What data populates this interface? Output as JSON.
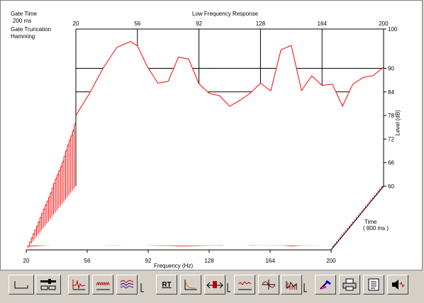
{
  "chart_data": {
    "type": "waterfall",
    "title": "Low Frequency Response",
    "info": {
      "gate_time_label": "Gate Time",
      "gate_time_value": "200 ms",
      "gate_truncation_label": "Gate Truncation",
      "window_type": "Hamming"
    },
    "x_axis": {
      "label": "Frequency (Hz)",
      "ticks": [
        "20",
        "56",
        "92",
        "128",
        "164",
        "200"
      ],
      "range": [
        20,
        200
      ]
    },
    "y_axis": {
      "label": "Level (dB)",
      "ticks": [
        "100",
        "90",
        "84",
        "78",
        "72",
        "66",
        "60"
      ],
      "range": [
        60,
        100
      ]
    },
    "time_axis": {
      "label": "Time",
      "range_label": "( 800 ms )"
    },
    "grid": true,
    "series_color": "#ff0000",
    "slice_count": 30,
    "front_slice": {
      "frequency": [
        20,
        28,
        36,
        44,
        52,
        56,
        62,
        68,
        74,
        80,
        86,
        92,
        98,
        104,
        110,
        116,
        122,
        128,
        134,
        140,
        146,
        152,
        158,
        164,
        170,
        176,
        182,
        188,
        194,
        200
      ],
      "level": [
        78,
        84,
        90,
        95,
        97,
        96,
        90,
        86,
        87,
        93,
        92,
        86,
        84,
        83,
        80,
        82,
        84,
        86,
        84,
        95,
        96,
        84,
        88,
        86,
        86,
        80,
        86,
        88,
        88,
        90
      ]
    }
  },
  "toolbar": {
    "buttons": [
      {
        "name": "baseline-tool-button",
        "icon": "baseline-icon"
      },
      {
        "name": "display-settings-button",
        "icon": "sliders-icon"
      },
      {
        "name": "impulse-response-button",
        "icon": "impulse-icon"
      },
      {
        "name": "tone-burst-button",
        "icon": "tone-burst-icon"
      },
      {
        "name": "multi-trace-button",
        "icon": "multi-trace-icon"
      },
      {
        "name": "rt-button",
        "icon": "rt-icon",
        "label": "RT"
      },
      {
        "name": "energy-decay-button",
        "icon": "decay-icon"
      },
      {
        "name": "gate-marker-button",
        "icon": "gate-marker-icon"
      },
      {
        "name": "frequency-response-button",
        "icon": "frequency-response-icon"
      },
      {
        "name": "phase-response-button",
        "icon": "phase-icon"
      },
      {
        "name": "waterfall-3d-button",
        "icon": "waterfall-icon"
      },
      {
        "name": "color-map-button",
        "icon": "color-palette-icon"
      },
      {
        "name": "print-button",
        "icon": "printer-icon"
      },
      {
        "name": "notes-button",
        "icon": "notes-icon"
      },
      {
        "name": "audio-output-button",
        "icon": "speaker-icon"
      }
    ]
  }
}
